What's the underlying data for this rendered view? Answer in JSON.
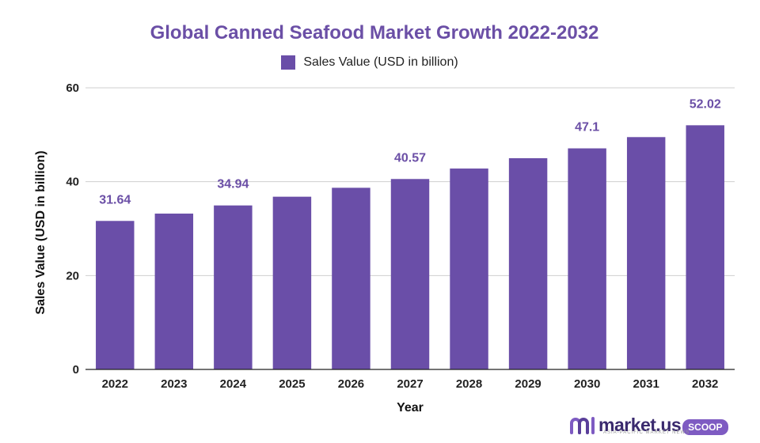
{
  "chart_data": {
    "type": "bar",
    "title": "Global Canned Seafood Market Growth 2022-2032",
    "xlabel": "Year",
    "ylabel": "Sales Value (USD in billion)",
    "ylim": [
      0,
      60
    ],
    "yticks": [
      0,
      20,
      40,
      60
    ],
    "categories": [
      "2022",
      "2023",
      "2024",
      "2025",
      "2026",
      "2027",
      "2028",
      "2029",
      "2030",
      "2031",
      "2032"
    ],
    "series": [
      {
        "name": "Sales Value (USD in billion)",
        "values": [
          31.64,
          33.2,
          34.94,
          36.8,
          38.7,
          40.57,
          42.8,
          45.0,
          47.1,
          49.5,
          52.02
        ],
        "color": "#6a4ea8"
      }
    ],
    "data_labels": [
      {
        "index": 0,
        "text": "31.64"
      },
      {
        "index": 2,
        "text": "34.94"
      },
      {
        "index": 5,
        "text": "40.57"
      },
      {
        "index": 8,
        "text": "47.1"
      },
      {
        "index": 10,
        "text": "52.02"
      }
    ],
    "grid": true,
    "legend_position": "top-center"
  },
  "branding": {
    "logo_text": "market.us",
    "badge": "SCOOP",
    "tagline": "ASIA-PACIFIC MARKET NEWS"
  }
}
